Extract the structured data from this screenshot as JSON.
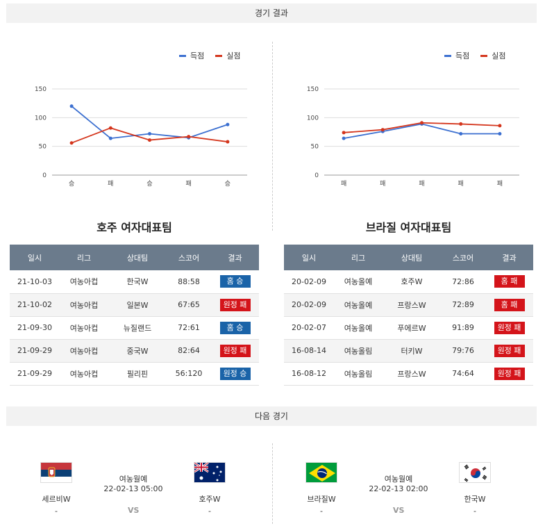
{
  "header": {
    "results_title": "경기 결과",
    "next_title": "다음 경기"
  },
  "charts": {
    "legend": {
      "score": "득점",
      "conceded": "실점"
    },
    "colors": {
      "score": "#3b6fd0",
      "conceded": "#d4351c"
    },
    "y_ticks": [
      "150",
      "100",
      "50",
      "0"
    ]
  },
  "chart_data": [
    {
      "type": "line",
      "categories": [
        "승",
        "패",
        "승",
        "패",
        "승"
      ],
      "series": [
        {
          "name": "득점",
          "values": [
            120,
            64,
            72,
            65,
            88
          ]
        },
        {
          "name": "실점",
          "values": [
            56,
            82,
            61,
            67,
            58
          ]
        }
      ],
      "ylim": [
        0,
        150
      ],
      "grid": true,
      "legend": "top-right"
    },
    {
      "type": "line",
      "categories": [
        "패",
        "패",
        "패",
        "패",
        "패"
      ],
      "series": [
        {
          "name": "득점",
          "values": [
            64,
            76,
            89,
            72,
            72
          ]
        },
        {
          "name": "실점",
          "values": [
            74,
            79,
            91,
            89,
            86
          ]
        }
      ],
      "ylim": [
        0,
        150
      ],
      "grid": true,
      "legend": "top-right"
    }
  ],
  "left_team": {
    "name": "호주 여자대표팀",
    "headers": [
      "일시",
      "리그",
      "상대팀",
      "스코어",
      "결과"
    ],
    "rows": [
      {
        "date": "21-10-03",
        "league": "여농아컵",
        "opponent": "한국W",
        "score": "88:58",
        "result": "홈 승",
        "type": "win"
      },
      {
        "date": "21-10-02",
        "league": "여농아컵",
        "opponent": "일본W",
        "score": "67:65",
        "result": "원정 패",
        "type": "lose"
      },
      {
        "date": "21-09-30",
        "league": "여농아컵",
        "opponent": "뉴질랜드",
        "score": "72:61",
        "result": "홈 승",
        "type": "win"
      },
      {
        "date": "21-09-29",
        "league": "여농아컵",
        "opponent": "중국W",
        "score": "82:64",
        "result": "원정 패",
        "type": "lose"
      },
      {
        "date": "21-09-29",
        "league": "여농아컵",
        "opponent": "필리핀",
        "score": "56:120",
        "result": "원정 승",
        "type": "win"
      }
    ]
  },
  "right_team": {
    "name": "브라질 여자대표팀",
    "headers": [
      "일시",
      "리그",
      "상대팀",
      "스코어",
      "결과"
    ],
    "rows": [
      {
        "date": "20-02-09",
        "league": "여농올예",
        "opponent": "호주W",
        "score": "72:86",
        "result": "홈 패",
        "type": "lose"
      },
      {
        "date": "20-02-09",
        "league": "여농올예",
        "opponent": "프랑스W",
        "score": "72:89",
        "result": "홈 패",
        "type": "lose"
      },
      {
        "date": "20-02-07",
        "league": "여농올예",
        "opponent": "푸에르W",
        "score": "91:89",
        "result": "원정 패",
        "type": "lose"
      },
      {
        "date": "16-08-14",
        "league": "여농올림",
        "opponent": "터키W",
        "score": "79:76",
        "result": "원정 패",
        "type": "lose"
      },
      {
        "date": "16-08-12",
        "league": "여농올림",
        "opponent": "프랑스W",
        "score": "74:64",
        "result": "원정 패",
        "type": "lose"
      }
    ]
  },
  "next_games": [
    {
      "home": "세르비W",
      "away": "호주W",
      "league": "여농월예",
      "datetime": "22-02-13 05:00",
      "home_odds": "-",
      "away_odds": "-",
      "vs": "VS"
    },
    {
      "home": "브라질W",
      "away": "한국W",
      "league": "여농월예",
      "datetime": "22-02-13 02:00",
      "home_odds": "-",
      "away_odds": "-",
      "vs": "VS"
    }
  ]
}
